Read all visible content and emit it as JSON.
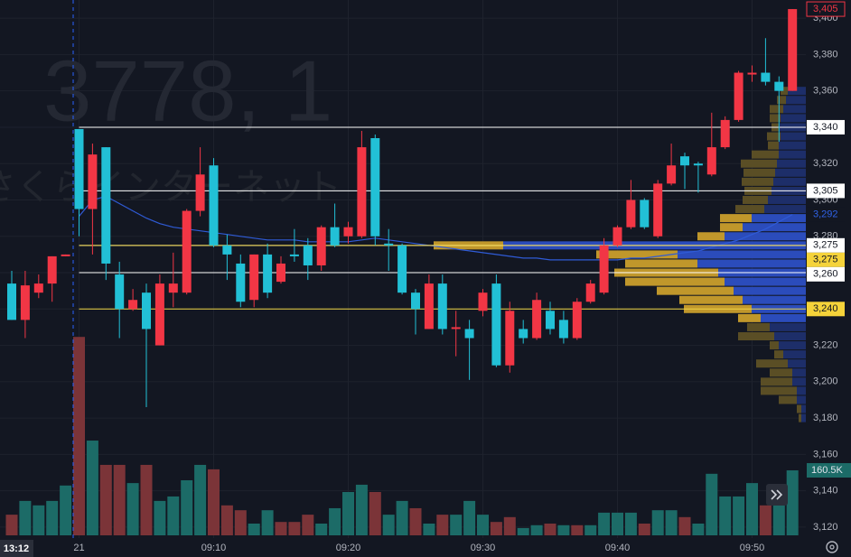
{
  "chart_data": {
    "type": "candlestick",
    "watermark": "3778, 1",
    "watermark_sub": "さくらインターネット",
    "crosshair_label": "13:12",
    "categories": [
      null,
      null,
      null,
      null,
      null,
      "21",
      null,
      null,
      null,
      null,
      null,
      null,
      null,
      null,
      null,
      "09:10",
      null,
      null,
      null,
      null,
      null,
      null,
      null,
      null,
      null,
      "09:20",
      null,
      null,
      null,
      null,
      null,
      null,
      null,
      null,
      null,
      "09:30",
      null,
      null,
      null,
      null,
      null,
      null,
      null,
      null,
      null,
      "09:40",
      null,
      null,
      null,
      null,
      null,
      null,
      null,
      null,
      null,
      "09:50",
      null,
      null,
      null
    ],
    "open": [
      3254,
      3234,
      3249,
      3254,
      3269,
      3339,
      3295,
      3329,
      3259,
      3240,
      3249,
      3220,
      3249,
      3249,
      3294,
      3319,
      3275,
      3265,
      3245,
      3270,
      3255,
      3270,
      3275,
      3264,
      3285,
      3280,
      3280,
      3334,
      3276,
      3275,
      3249,
      3229,
      3254,
      3229,
      3229,
      3239,
      3254,
      3209,
      3229,
      3224,
      3239,
      3234,
      3224,
      3244,
      3249,
      3275,
      3285,
      3300,
      3280,
      3309,
      3324,
      3320,
      3314,
      3329,
      3344,
      3369,
      3370,
      3365,
      3360
    ],
    "high": [
      3261,
      3261,
      3259,
      3269,
      3270,
      3339,
      3331,
      3329,
      3266,
      3251,
      3254,
      3259,
      3271,
      3295,
      3329,
      3323,
      3281,
      3270,
      3270,
      3276,
      3269,
      3284,
      3279,
      3286,
      3298,
      3288,
      3338,
      3336,
      3284,
      3276,
      3251,
      3259,
      3259,
      3239,
      3234,
      3251,
      3259,
      3244,
      3234,
      3249,
      3244,
      3239,
      3246,
      3256,
      3279,
      3286,
      3311,
      3301,
      3311,
      3331,
      3326,
      3321,
      3348,
      3346,
      3371,
      3374,
      3389,
      3368,
      3405
    ],
    "low": [
      3234,
      3224,
      3246,
      3244,
      3269,
      3280,
      3270,
      3256,
      3224,
      3239,
      3186,
      3220,
      3241,
      3248,
      3291,
      3274,
      3256,
      3241,
      3241,
      3246,
      3254,
      3266,
      3256,
      3261,
      3274,
      3276,
      3279,
      3275,
      3261,
      3248,
      3226,
      3229,
      3226,
      3214,
      3201,
      3236,
      3208,
      3205,
      3221,
      3223,
      3226,
      3221,
      3223,
      3243,
      3248,
      3274,
      3284,
      3284,
      3279,
      3308,
      3306,
      3304,
      3313,
      3328,
      3343,
      3365,
      3363,
      3332,
      3360
    ],
    "close": [
      3234,
      3253,
      3254,
      3269,
      3270,
      3295,
      3325,
      3265,
      3240,
      3245,
      3229,
      3254,
      3254,
      3294,
      3314,
      3275,
      3270,
      3244,
      3270,
      3249,
      3265,
      3269,
      3264,
      3285,
      3275,
      3285,
      3329,
      3280,
      3275,
      3249,
      3240,
      3254,
      3229,
      3230,
      3224,
      3249,
      3209,
      3239,
      3224,
      3245,
      3229,
      3224,
      3244,
      3254,
      3275,
      3285,
      3300,
      3285,
      3309,
      3319,
      3319,
      3319,
      3329,
      3344,
      3370,
      3370,
      3365,
      3360,
      3405
    ],
    "up_color": "#f23645",
    "down_color": "#22c0d6",
    "ma": [
      null,
      null,
      null,
      null,
      null,
      3291,
      3300,
      3302,
      3298,
      3294,
      3290,
      3287,
      3285,
      3284,
      3283,
      3282,
      3281,
      3280,
      3279,
      3278,
      3278,
      3278,
      3277,
      3277,
      3277,
      3277,
      3278,
      3279,
      3278,
      3277,
      3276,
      3275,
      3274,
      3273,
      3272,
      3271,
      3270,
      3269,
      3268,
      3268,
      3267,
      3267,
      3267,
      3267,
      3267,
      3267,
      3268,
      3268,
      3269,
      3270,
      3271,
      3272,
      3274,
      3276,
      3278,
      3281,
      3284,
      3288,
      3292
    ],
    "ma_color": "#2f5bd6",
    "volume": [
      51,
      85,
      74,
      85,
      123,
      490,
      234,
      174,
      174,
      129,
      174,
      85,
      96,
      136,
      174,
      163,
      74,
      62,
      29,
      62,
      33,
      33,
      51,
      29,
      67,
      107,
      125,
      107,
      51,
      85,
      67,
      29,
      51,
      51,
      85,
      51,
      33,
      45,
      18,
      25,
      29,
      25,
      25,
      25,
      56,
      56,
      56,
      29,
      62,
      62,
      45,
      29,
      152,
      96,
      96,
      129,
      74,
      118,
      160.5
    ],
    "volume_colors": [
      "#7b3438",
      "#1c6b67",
      "#1c6b67",
      "#1c6b67",
      "#1c6b67",
      "#7b3438",
      "#1c6b67",
      "#7b3438",
      "#7b3438",
      "#1c6b67",
      "#7b3438",
      "#1c6b67",
      "#1c6b67",
      "#1c6b67",
      "#1c6b67",
      "#7b3438",
      "#7b3438",
      "#7b3438",
      "#1c6b67",
      "#1c6b67",
      "#7b3438",
      "#7b3438",
      "#7b3438",
      "#1c6b67",
      "#1c6b67",
      "#1c6b67",
      "#1c6b67",
      "#7b3438",
      "#1c6b67",
      "#1c6b67",
      "#7b3438",
      "#1c6b67",
      "#7b3438",
      "#1c6b67",
      "#1c6b67",
      "#1c6b67",
      "#7b3438",
      "#7b3438",
      "#1c6b67",
      "#1c6b67",
      "#7b3438",
      "#1c6b67",
      "#7b3438",
      "#1c6b67",
      "#1c6b67",
      "#1c6b67",
      "#1c6b67",
      "#7b3438",
      "#1c6b67",
      "#1c6b67",
      "#7b3438",
      "#1c6b67",
      "#1c6b67",
      "#1c6b67",
      "#1c6b67",
      "#1c6b67",
      "#7b3438",
      "#1c6b67",
      "#1c6b67"
    ],
    "volume_ylim": [
      0,
      1322
    ],
    "volume_marker": {
      "value": 160.5,
      "label": "160.5K"
    },
    "ylim": [
      3114,
      3410
    ],
    "yticks": [
      {
        "value": 3120,
        "label": "3,120"
      },
      {
        "value": 3140,
        "label": "3,140"
      },
      {
        "value": 3160,
        "label": "3,160"
      },
      {
        "value": 3180,
        "label": "3,180"
      },
      {
        "value": 3200,
        "label": "3,200"
      },
      {
        "value": 3220,
        "label": "3,220"
      },
      {
        "value": 3240,
        "label": "3,240"
      },
      {
        "value": 3260,
        "label": "3,260"
      },
      {
        "value": 3280,
        "label": "3,280"
      },
      {
        "value": 3300,
        "label": "3,300"
      },
      {
        "value": 3320,
        "label": "3,320"
      },
      {
        "value": 3340,
        "label": "3,340"
      },
      {
        "value": 3360,
        "label": "3,360"
      },
      {
        "value": 3380,
        "label": "3,380"
      },
      {
        "value": 3400,
        "label": "3,400"
      }
    ],
    "grid": true,
    "price_markers": [
      {
        "value": 3405,
        "label": "3,405",
        "kind": "last"
      },
      {
        "value": 3340,
        "label": "3,340",
        "kind": "line"
      },
      {
        "value": 3305,
        "label": "3,305",
        "kind": "line"
      },
      {
        "value": 3292,
        "label": "3,292",
        "kind": "ma"
      },
      {
        "value": 3275,
        "label": "3,275",
        "kind": "line"
      },
      {
        "value": 3275,
        "label": "3,275",
        "kind": "yellow"
      },
      {
        "value": 3260,
        "label": "3,260",
        "kind": "line"
      },
      {
        "value": 3240,
        "label": "3,240",
        "kind": "yellow"
      }
    ],
    "profile": {
      "levels": [
        3360,
        3355,
        3350,
        3345,
        3340,
        3335,
        3330,
        3325,
        3320,
        3315,
        3310,
        3305,
        3300,
        3295,
        3290,
        3285,
        3280,
        3275,
        3270,
        3265,
        3260,
        3255,
        3250,
        3245,
        3240,
        3235,
        3230,
        3225,
        3220,
        3215,
        3210,
        3205,
        3200,
        3195,
        3190,
        3185,
        3180
      ],
      "down": [
        20,
        22,
        25,
        28,
        30,
        28,
        30,
        30,
        32,
        34,
        36,
        38,
        42,
        46,
        60,
        70,
        90,
        335,
        142,
        120,
        97,
        90,
        80,
        70,
        60,
        50,
        40,
        35,
        30,
        25,
        20,
        15,
        15,
        10,
        10,
        5,
        5
      ],
      "up": [
        8,
        10,
        15,
        12,
        8,
        15,
        12,
        30,
        40,
        35,
        35,
        30,
        28,
        32,
        35,
        25,
        30,
        77,
        90,
        80,
        115,
        110,
        85,
        70,
        75,
        25,
        25,
        40,
        10,
        10,
        35,
        25,
        35,
        40,
        20,
        5,
        3
      ],
      "value_area": [
        3235,
        3290
      ]
    }
  }
}
